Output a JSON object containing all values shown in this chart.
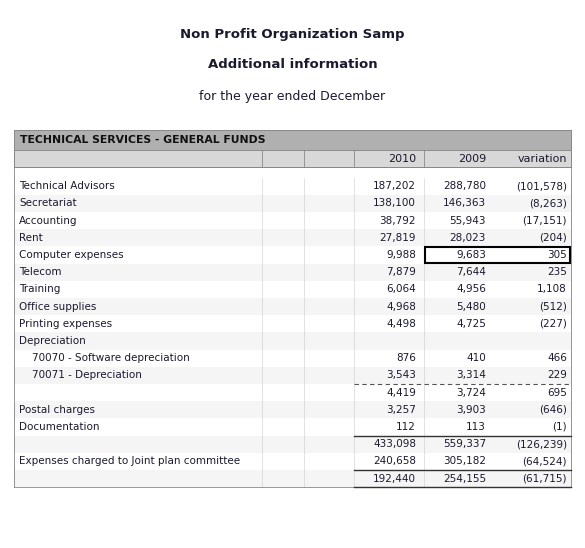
{
  "title1": "Non Profit Organization Samp",
  "title2": "Additional information",
  "title3": "for the year ended December",
  "section_header": "TECHNICAL SERVICES - GENERAL FUNDS",
  "rows": [
    {
      "label": "Technical Advisors",
      "indent": 0,
      "v2010": "187,202",
      "v2009": "288,780",
      "vvar": "(101,578)",
      "highlight_var": false,
      "dotted_bottom": false,
      "bold_bottom": false,
      "blank": false
    },
    {
      "label": "Secretariat",
      "indent": 0,
      "v2010": "138,100",
      "v2009": "146,363",
      "vvar": "(8,263)",
      "highlight_var": false,
      "dotted_bottom": false,
      "bold_bottom": false,
      "blank": false
    },
    {
      "label": "Accounting",
      "indent": 0,
      "v2010": "38,792",
      "v2009": "55,943",
      "vvar": "(17,151)",
      "highlight_var": false,
      "dotted_bottom": false,
      "bold_bottom": false,
      "blank": false
    },
    {
      "label": "Rent",
      "indent": 0,
      "v2010": "27,819",
      "v2009": "28,023",
      "vvar": "(204)",
      "highlight_var": false,
      "dotted_bottom": false,
      "bold_bottom": false,
      "blank": false
    },
    {
      "label": "Computer expenses",
      "indent": 0,
      "v2010": "9,988",
      "v2009": "9,683",
      "vvar": "305",
      "highlight_var": true,
      "dotted_bottom": false,
      "bold_bottom": false,
      "blank": false
    },
    {
      "label": "Telecom",
      "indent": 0,
      "v2010": "7,879",
      "v2009": "7,644",
      "vvar": "235",
      "highlight_var": false,
      "dotted_bottom": false,
      "bold_bottom": false,
      "blank": false
    },
    {
      "label": "Training",
      "indent": 0,
      "v2010": "6,064",
      "v2009": "4,956",
      "vvar": "1,108",
      "highlight_var": false,
      "dotted_bottom": false,
      "bold_bottom": false,
      "blank": false
    },
    {
      "label": "Office supplies",
      "indent": 0,
      "v2010": "4,968",
      "v2009": "5,480",
      "vvar": "(512)",
      "highlight_var": false,
      "dotted_bottom": false,
      "bold_bottom": false,
      "blank": false
    },
    {
      "label": "Printing expenses",
      "indent": 0,
      "v2010": "4,498",
      "v2009": "4,725",
      "vvar": "(227)",
      "highlight_var": false,
      "dotted_bottom": false,
      "bold_bottom": false,
      "blank": false
    },
    {
      "label": "Depreciation",
      "indent": 0,
      "v2010": "",
      "v2009": "",
      "vvar": "",
      "highlight_var": false,
      "dotted_bottom": false,
      "bold_bottom": false,
      "blank": false
    },
    {
      "label": "70070 - Software depreciation",
      "indent": 1,
      "v2010": "876",
      "v2009": "410",
      "vvar": "466",
      "highlight_var": false,
      "dotted_bottom": false,
      "bold_bottom": false,
      "blank": false
    },
    {
      "label": "70071 - Depreciation",
      "indent": 1,
      "v2010": "3,543",
      "v2009": "3,314",
      "vvar": "229",
      "highlight_var": false,
      "dotted_bottom": true,
      "bold_bottom": false,
      "blank": false
    },
    {
      "label": "",
      "indent": 0,
      "v2010": "4,419",
      "v2009": "3,724",
      "vvar": "695",
      "highlight_var": false,
      "dotted_bottom": false,
      "bold_bottom": false,
      "blank": true
    },
    {
      "label": "Postal charges",
      "indent": 0,
      "v2010": "3,257",
      "v2009": "3,903",
      "vvar": "(646)",
      "highlight_var": false,
      "dotted_bottom": false,
      "bold_bottom": false,
      "blank": false
    },
    {
      "label": "Documentation",
      "indent": 0,
      "v2010": "112",
      "v2009": "113",
      "vvar": "(1)",
      "highlight_var": false,
      "dotted_bottom": false,
      "bold_bottom": true,
      "blank": false
    },
    {
      "label": "",
      "indent": 0,
      "v2010": "433,098",
      "v2009": "559,337",
      "vvar": "(126,239)",
      "highlight_var": false,
      "dotted_bottom": false,
      "bold_bottom": false,
      "blank": true
    },
    {
      "label": "Expenses charged to Joint plan committee",
      "indent": 0,
      "v2010": "240,658",
      "v2009": "305,182",
      "vvar": "(64,524)",
      "highlight_var": false,
      "dotted_bottom": false,
      "bold_bottom": true,
      "blank": false
    },
    {
      "label": "",
      "indent": 0,
      "v2010": "192,440",
      "v2009": "254,155",
      "vvar": "(61,715)",
      "highlight_var": false,
      "dotted_bottom": false,
      "bold_bottom": true,
      "blank": true
    }
  ],
  "bg_color": "#ffffff",
  "header_bg": "#b0b0b0",
  "col_header_bg": "#d8d8d8",
  "text_color": "#1a1a2e",
  "grid_color": "#cccccc"
}
